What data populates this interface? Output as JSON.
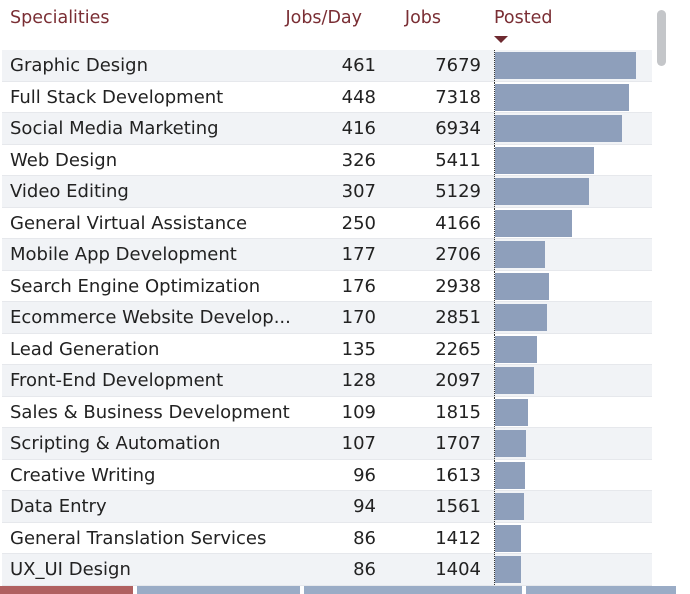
{
  "table": {
    "headers": {
      "name": "Specialities",
      "rate": "Jobs/Day",
      "jobs": "Jobs",
      "posted": "Posted"
    },
    "sort": {
      "column": "posted",
      "direction": "descending"
    },
    "rows": [
      {
        "name": "Graphic Design",
        "rate": "461",
        "jobs": "7679"
      },
      {
        "name": "Full Stack Development",
        "rate": "448",
        "jobs": "7318"
      },
      {
        "name": "Social Media Marketing",
        "rate": "416",
        "jobs": "6934"
      },
      {
        "name": "Web Design",
        "rate": "326",
        "jobs": "5411"
      },
      {
        "name": "Video Editing",
        "rate": "307",
        "jobs": "5129"
      },
      {
        "name": "General Virtual Assistance",
        "rate": "250",
        "jobs": "4166"
      },
      {
        "name": "Mobile App Development",
        "rate": "177",
        "jobs": "2706"
      },
      {
        "name": "Search Engine Optimization",
        "rate": "176",
        "jobs": "2938"
      },
      {
        "name": "Ecommerce Website Develop...",
        "rate": "170",
        "jobs": "2851"
      },
      {
        "name": "Lead Generation",
        "rate": "135",
        "jobs": "2265"
      },
      {
        "name": "Front-End Development",
        "rate": "128",
        "jobs": "2097"
      },
      {
        "name": "Sales & Business Development",
        "rate": "109",
        "jobs": "1815"
      },
      {
        "name": "Scripting & Automation",
        "rate": "107",
        "jobs": "1707"
      },
      {
        "name": "Creative Writing",
        "rate": "96",
        "jobs": "1613"
      },
      {
        "name": "Data Entry",
        "rate": "94",
        "jobs": "1561"
      },
      {
        "name": "General Translation Services",
        "rate": "86",
        "jobs": "1412"
      },
      {
        "name": "UX_UI Design",
        "rate": "86",
        "jobs": "1404"
      }
    ]
  },
  "colors": {
    "header_text": "#7a2e34",
    "bar": "#8e9fbb",
    "row_alt": "#f1f3f6"
  }
}
